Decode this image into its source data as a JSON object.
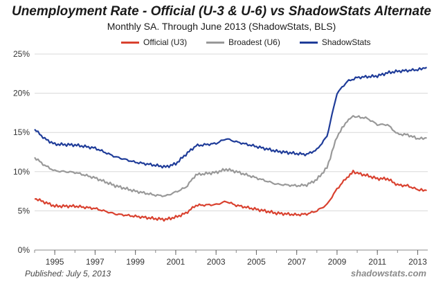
{
  "chart_data": {
    "type": "line",
    "title": "Unemployment Rate - Official (U-3 & U-6) vs ShadowStats Alternate",
    "subtitle": "Monthly SA. Through June 2013  (ShadowStats, BLS)",
    "xlabel": "",
    "ylabel": "",
    "xlim": [
      1994.0,
      2013.5
    ],
    "ylim": [
      0,
      25
    ],
    "yticks": [
      0,
      5,
      10,
      15,
      20,
      25
    ],
    "ytick_labels": [
      "0%",
      "5%",
      "10%",
      "15%",
      "20%",
      "25%"
    ],
    "xticks": [
      1995,
      1997,
      1999,
      2001,
      2003,
      2005,
      2007,
      2009,
      2011,
      2013
    ],
    "xtick_labels": [
      "1995",
      "1997",
      "1999",
      "2001",
      "2003",
      "2005",
      "2007",
      "2009",
      "2011",
      "2013"
    ],
    "grid": "horizontal",
    "legend_position": "top",
    "series": [
      {
        "name": "Official (U3)",
        "color": "#d9412f",
        "x": [
          1994.0,
          1994.5,
          1995.0,
          1996.0,
          1997.0,
          1998.0,
          1999.0,
          2000.0,
          2000.5,
          2001.0,
          2001.5,
          2002.0,
          2003.0,
          2003.5,
          2004.0,
          2005.0,
          2006.0,
          2007.0,
          2007.5,
          2008.0,
          2008.5,
          2009.0,
          2009.5,
          2009.8,
          2010.0,
          2010.5,
          2011.0,
          2011.5,
          2012.0,
          2012.5,
          2013.0,
          2013.45
        ],
        "values": [
          6.6,
          6.1,
          5.6,
          5.6,
          5.3,
          4.6,
          4.3,
          4.0,
          3.9,
          4.2,
          4.7,
          5.7,
          5.8,
          6.2,
          5.7,
          5.2,
          4.7,
          4.5,
          4.6,
          5.0,
          5.8,
          7.8,
          9.3,
          10.0,
          9.8,
          9.5,
          9.1,
          9.1,
          8.3,
          8.2,
          7.7,
          7.6
        ]
      },
      {
        "name": "Broadest (U6)",
        "color": "#999999",
        "x": [
          1994.0,
          1994.5,
          1995.0,
          1996.0,
          1997.0,
          1998.0,
          1999.0,
          2000.0,
          2000.5,
          2001.0,
          2001.5,
          2002.0,
          2003.0,
          2003.5,
          2004.0,
          2005.0,
          2006.0,
          2007.0,
          2007.5,
          2008.0,
          2008.5,
          2009.0,
          2009.5,
          2009.8,
          2010.0,
          2010.5,
          2011.0,
          2011.5,
          2012.0,
          2012.5,
          2013.0,
          2013.45
        ],
        "values": [
          11.8,
          10.8,
          10.1,
          9.9,
          9.2,
          8.2,
          7.5,
          7.0,
          6.9,
          7.4,
          8.0,
          9.6,
          9.9,
          10.3,
          10.0,
          9.2,
          8.4,
          8.2,
          8.3,
          9.0,
          10.5,
          14.5,
          16.5,
          17.0,
          17.0,
          16.8,
          16.0,
          16.0,
          14.8,
          14.7,
          14.2,
          14.3
        ]
      },
      {
        "name": "ShadowStats",
        "color": "#1f3c99",
        "x": [
          1994.0,
          1994.5,
          1995.0,
          1996.0,
          1997.0,
          1998.0,
          1999.0,
          2000.0,
          2000.5,
          2001.0,
          2001.5,
          2002.0,
          2003.0,
          2003.5,
          2004.0,
          2005.0,
          2006.0,
          2007.0,
          2007.5,
          2008.0,
          2008.5,
          2009.0,
          2009.5,
          2010.0,
          2010.5,
          2011.0,
          2011.5,
          2012.0,
          2012.5,
          2013.0,
          2013.45
        ],
        "values": [
          15.4,
          14.2,
          13.5,
          13.4,
          13.0,
          11.9,
          11.2,
          10.8,
          10.6,
          11.0,
          12.2,
          13.3,
          13.6,
          14.2,
          13.8,
          13.2,
          12.6,
          12.3,
          12.2,
          12.8,
          14.5,
          20.0,
          21.5,
          22.0,
          22.1,
          22.2,
          22.6,
          22.8,
          22.9,
          23.0,
          23.3
        ]
      }
    ]
  },
  "footer": {
    "published": "Published: July 5, 2013",
    "watermark": "shadowstats.com"
  }
}
